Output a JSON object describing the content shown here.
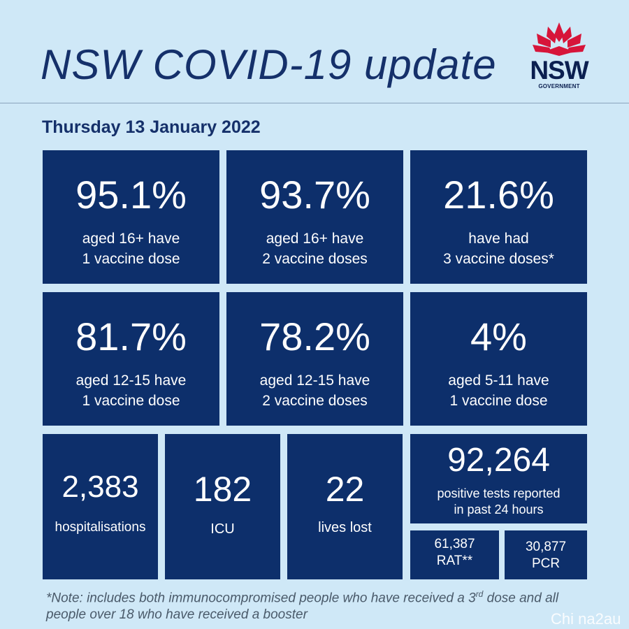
{
  "header": {
    "title": "NSW COVID-19 update"
  },
  "logo": {
    "word": "NSW",
    "sub": "GOVERNMENT"
  },
  "date": "Thursday 13 January 2022",
  "vaccine_stats": [
    {
      "value": "95.1%",
      "line1": "aged 16+ have",
      "line2": "1 vaccine dose"
    },
    {
      "value": "93.7%",
      "line1": "aged 16+ have",
      "line2": "2 vaccine doses"
    },
    {
      "value": "21.6%",
      "line1": "have had",
      "line2": "3 vaccine doses*"
    },
    {
      "value": "81.7%",
      "line1": "aged 12-15 have",
      "line2": "1 vaccine dose"
    },
    {
      "value": "78.2%",
      "line1": "aged 12-15 have",
      "line2": "2 vaccine doses"
    },
    {
      "value": "4%",
      "line1": "aged 5-11 have",
      "line2": "1 vaccine dose"
    }
  ],
  "hospital_stats": [
    {
      "value": "2,383",
      "label": "hospitalisations"
    },
    {
      "value": "182",
      "label": "ICU"
    },
    {
      "value": "22",
      "label": "lives lost"
    }
  ],
  "tests": {
    "value": "92,264",
    "line1": "positive tests reported",
    "line2": "in past 24 hours",
    "rat": {
      "value": "61,387",
      "label": "RAT**"
    },
    "pcr": {
      "value": "30,877",
      "label": "PCR"
    }
  },
  "footnote": {
    "part1": "*Note: includes both immunocompromised people who have received a 3",
    "sup": "rd",
    "part2": " dose and all people over 18 who have received a booster"
  },
  "watermark": "Chi na2au",
  "colors": {
    "background": "#cfe8f7",
    "tile": "#0d2f6b",
    "title": "#15306a",
    "logo_red": "#d7153a"
  }
}
